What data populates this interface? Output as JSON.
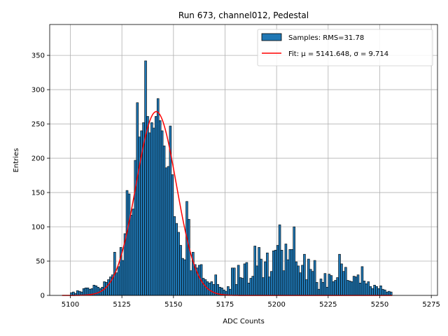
{
  "chart_data": {
    "type": "bar",
    "title": "Run 673, channel012, Pedestal",
    "xlabel": "ADC Counts",
    "ylabel": "Entries",
    "xlim": [
      5090,
      5278
    ],
    "ylim": [
      0,
      395
    ],
    "xticks": [
      5100,
      5125,
      5150,
      5175,
      5200,
      5225,
      5250,
      5275
    ],
    "yticks": [
      0,
      50,
      100,
      150,
      200,
      250,
      300,
      350
    ],
    "grid": true,
    "legend_position": "top-right",
    "histogram": {
      "name": "Samples: RMS=31.78",
      "color": "#1f77b4",
      "bin_start": 5100,
      "bin_width": 1,
      "counts": [
        4,
        5,
        3,
        7,
        6,
        5,
        10,
        11,
        11,
        9,
        10,
        15,
        14,
        12,
        10,
        12,
        20,
        19,
        23,
        27,
        30,
        63,
        33,
        42,
        70,
        51,
        90,
        153,
        148,
        117,
        126,
        197,
        281,
        231,
        240,
        252,
        342,
        261,
        237,
        252,
        244,
        261,
        287,
        255,
        240,
        218,
        186,
        188,
        247,
        176,
        115,
        105,
        92,
        73,
        54,
        52,
        137,
        111,
        36,
        63,
        45,
        40,
        44,
        45,
        25,
        23,
        20,
        18,
        20,
        16,
        30,
        16,
        12,
        11,
        8,
        6,
        13,
        9,
        40,
        40,
        16,
        44,
        26,
        25,
        46,
        48,
        18,
        25,
        28,
        72,
        43,
        70,
        53,
        26,
        49,
        62,
        27,
        35,
        65,
        66,
        73,
        103,
        66,
        36,
        75,
        52,
        67,
        67,
        100,
        49,
        43,
        33,
        44,
        60,
        23,
        53,
        38,
        35,
        51,
        19,
        9,
        24,
        19,
        32,
        12,
        31,
        29,
        20,
        22,
        26,
        60,
        46,
        35,
        41,
        22,
        21,
        20,
        28,
        27,
        30,
        18,
        42,
        21,
        17,
        20,
        13,
        10,
        15,
        13,
        10,
        14,
        9,
        8,
        5,
        6,
        5
      ]
    },
    "fit": {
      "name": "Fit: μ = 5141.648, σ = 9.714",
      "color": "#ff0000",
      "mu": 5141.648,
      "sigma": 9.714,
      "amplitude": 268,
      "x_range": [
        5096,
        5256
      ]
    }
  }
}
